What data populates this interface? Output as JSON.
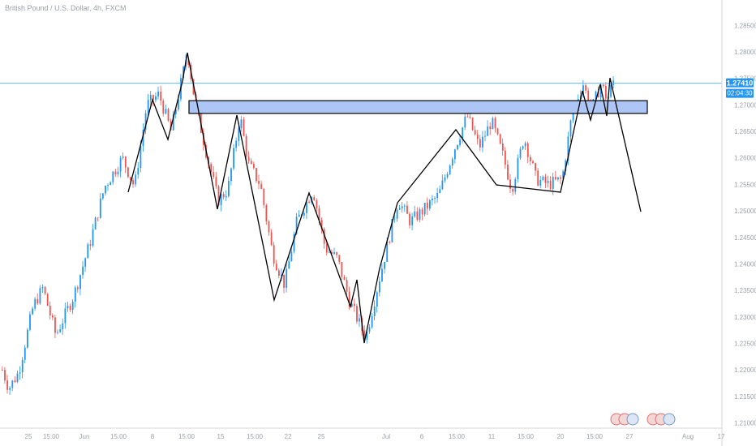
{
  "colors": {
    "up": "#2196f3",
    "down": "#ef5350",
    "price_line": "#64b5f6",
    "zone_fill": "#aec6f5",
    "zone_border": "#000000",
    "trend": "#000000",
    "axis_border": "#d6d6d6",
    "label_bg": "#2196f3"
  },
  "chart_data": {
    "type": "candlestick",
    "title": "British Pound / U.S. Dollar, 4h, FXCM",
    "y_ticks": [
      "1.28500",
      "1.28000",
      "1.27500",
      "1.27000",
      "1.26500",
      "1.26000",
      "1.25500",
      "1.25000",
      "1.24500",
      "1.24000",
      "1.23500",
      "1.23000",
      "1.22500",
      "1.22000",
      "1.21500",
      "1.21000"
    ],
    "ylim": [
      1.209,
      1.2898
    ],
    "x_ticks": [
      {
        "label": "25",
        "x": 0
      },
      {
        "label": "15:00",
        "x": 1
      },
      {
        "label": "Jun",
        "x": 2
      },
      {
        "label": "15:00",
        "x": 3
      },
      {
        "label": "8",
        "x": 4
      },
      {
        "label": "15:00",
        "x": 5
      },
      {
        "label": "15",
        "x": 6
      },
      {
        "label": "15:00",
        "x": 7
      },
      {
        "label": "22",
        "x": 8
      },
      {
        "label": "25",
        "x": 9
      },
      {
        "label": "Jul",
        "x": 10
      },
      {
        "label": "6",
        "x": 11
      },
      {
        "label": "15:00",
        "x": 12
      },
      {
        "label": "11",
        "x": 13
      },
      {
        "label": "15:00",
        "x": 14
      },
      {
        "label": "20",
        "x": 15
      },
      {
        "label": "15:00",
        "x": 16
      },
      {
        "label": "27",
        "x": 17
      },
      {
        "label": "Aug",
        "x": 18
      },
      {
        "label": "17",
        "x": 19
      }
    ],
    "current_price": {
      "value": 1.2741,
      "label": "1.27410",
      "countdown": "02:04:30"
    },
    "zone": {
      "y_top": 1.2708,
      "y_bottom": 1.2684
    },
    "trend_path": [
      1.2535,
      1.2765,
      1.263,
      1.2768,
      1.264,
      1.2805,
      1.27,
      1.2505,
      1.27,
      1.233,
      1.238,
      1.226,
      1.239,
      1.253,
      1.2738,
      1.268,
      1.2748,
      1.271,
      1.274,
      1.25
    ],
    "candles_summary": "GBP/USD 4h candles from late May to late July; peak near 1.2810 in early June, low near 1.2255 late June, recovery to 1.2740"
  }
}
